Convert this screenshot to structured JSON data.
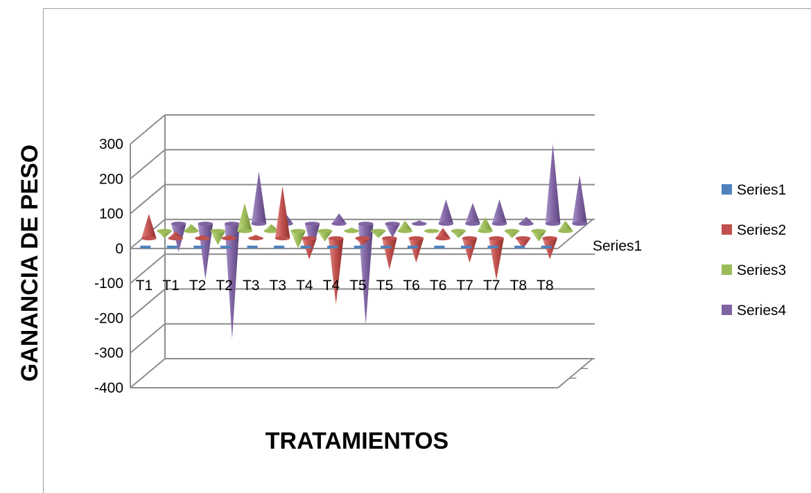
{
  "chart_data": {
    "type": "bar",
    "subtype": "3d-cone",
    "title": "",
    "xlabel": "TRATAMIENTOS",
    "ylabel": "GANANCIA DE PESO",
    "depth_axis_label": "Series1",
    "ylim": [
      -400,
      300
    ],
    "yticks": [
      300,
      200,
      100,
      0,
      -100,
      -200,
      -300,
      -400
    ],
    "grid": true,
    "legend_position": "right",
    "categories": [
      "T1",
      "T1",
      "T2",
      "T2",
      "T3",
      "T3",
      "T4",
      "T4",
      "T5",
      "T5",
      "T6",
      "T6",
      "T7",
      "T7",
      "T8",
      "T8"
    ],
    "series": [
      {
        "name": "Series1",
        "color": "#4F81BD",
        "values": [
          0,
          0,
          0,
          0,
          0,
          0,
          0,
          0,
          0,
          0,
          0,
          0,
          0,
          0,
          0,
          0
        ]
      },
      {
        "name": "Series2",
        "color": "#C0504D",
        "values": [
          70,
          20,
          10,
          10,
          10,
          150,
          -60,
          -190,
          -20,
          -90,
          -70,
          30,
          -70,
          -120,
          -30,
          -60
        ]
      },
      {
        "name": "Series3",
        "color": "#9BBB59",
        "values": [
          -20,
          20,
          -40,
          80,
          20,
          -50,
          -30,
          10,
          -20,
          30,
          5,
          -20,
          40,
          -20,
          -30,
          30
        ]
      },
      {
        "name": "Series4",
        "color": "#8064A2",
        "values": [
          -80,
          -160,
          -330,
          150,
          30,
          -80,
          30,
          -290,
          -40,
          10,
          70,
          60,
          70,
          20,
          230,
          140
        ]
      }
    ]
  }
}
